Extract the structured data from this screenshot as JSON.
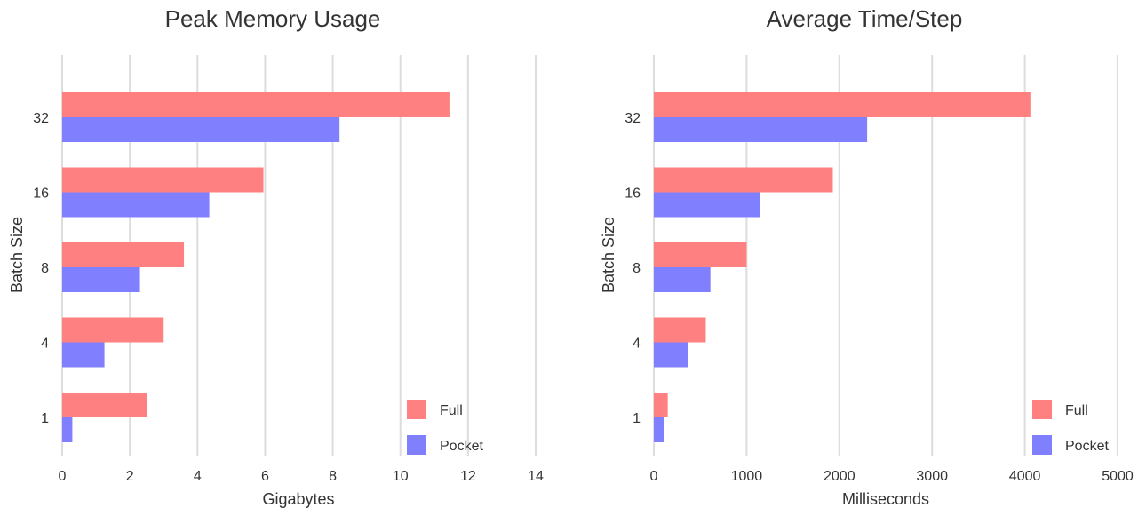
{
  "chart_data": [
    {
      "type": "bar",
      "orientation": "horizontal",
      "title": "Peak Memory Usage",
      "xlabel": "Gigabytes",
      "ylabel": "Batch Size",
      "categories": [
        "1",
        "4",
        "8",
        "16",
        "32"
      ],
      "series": [
        {
          "name": "Full",
          "color": "#ff8080",
          "values": [
            2.5,
            3.0,
            3.6,
            5.95,
            11.45
          ]
        },
        {
          "name": "Pocket",
          "color": "#8080ff",
          "values": [
            0.3,
            1.25,
            2.3,
            4.35,
            8.2
          ]
        }
      ],
      "xlim": [
        0,
        14
      ],
      "xticks": [
        0,
        2,
        4,
        6,
        8,
        10,
        12,
        14
      ],
      "grid": "vertical",
      "legend": "bottom-right"
    },
    {
      "type": "bar",
      "orientation": "horizontal",
      "title": "Average Time/Step",
      "xlabel": "Milliseconds",
      "ylabel": "Batch Size",
      "categories": [
        "1",
        "4",
        "8",
        "16",
        "32"
      ],
      "series": [
        {
          "name": "Full",
          "color": "#ff8080",
          "values": [
            150,
            560,
            1000,
            1930,
            4060
          ]
        },
        {
          "name": "Pocket",
          "color": "#8080ff",
          "values": [
            110,
            370,
            610,
            1140,
            2300
          ]
        }
      ],
      "xlim": [
        0,
        5000
      ],
      "xticks": [
        0,
        1000,
        2000,
        3000,
        4000,
        5000
      ],
      "grid": "vertical",
      "legend": "bottom-right"
    }
  ]
}
